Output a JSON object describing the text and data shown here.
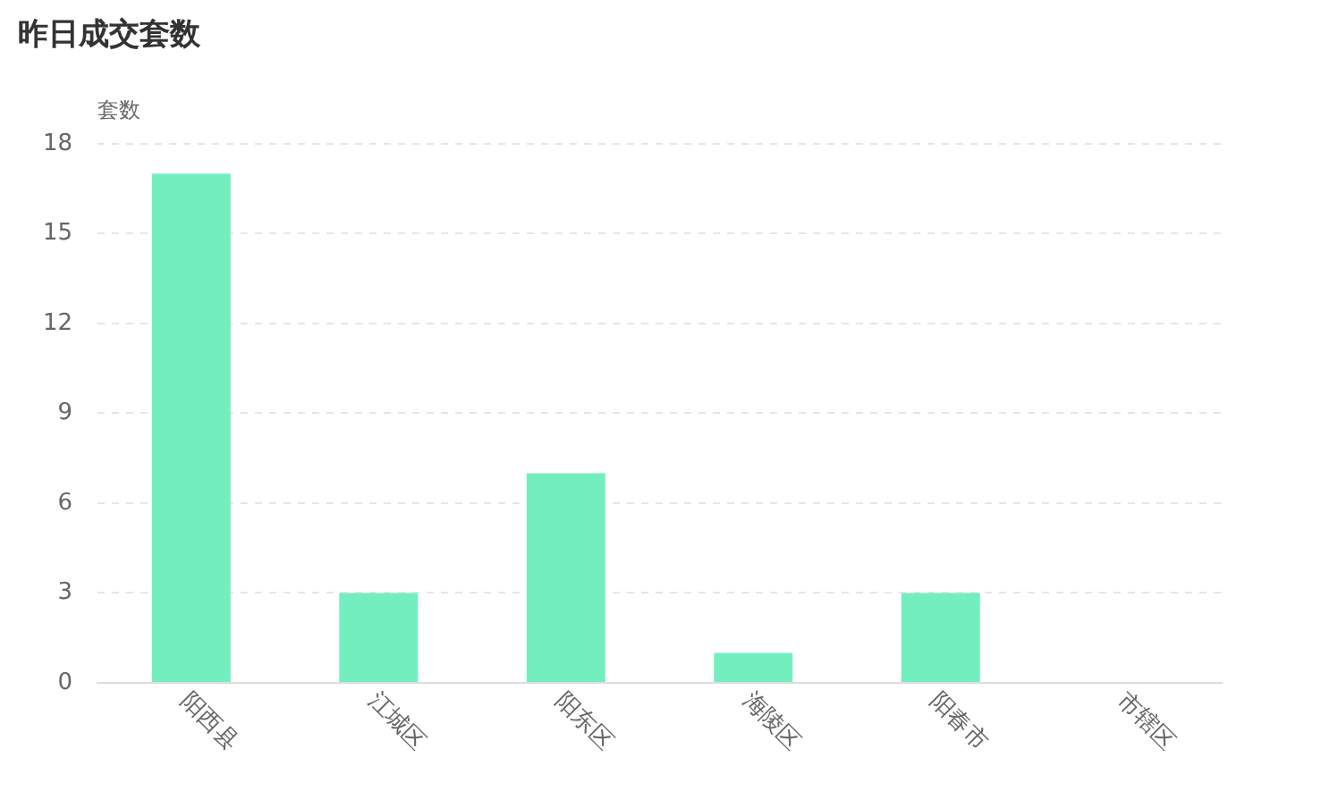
{
  "chart_data": {
    "type": "bar",
    "title": "昨日成交套数",
    "ylabel": "套数",
    "categories": [
      "阳西县",
      "江城区",
      "阳东区",
      "海陵区",
      "阳春市",
      "市辖区"
    ],
    "values": [
      17,
      3,
      7,
      1,
      3,
      0
    ],
    "color": "#73efbf",
    "ylim": [
      0,
      18
    ],
    "yticks": [
      0,
      3,
      6,
      9,
      12,
      15,
      18
    ],
    "grid": "y",
    "legend": false
  }
}
